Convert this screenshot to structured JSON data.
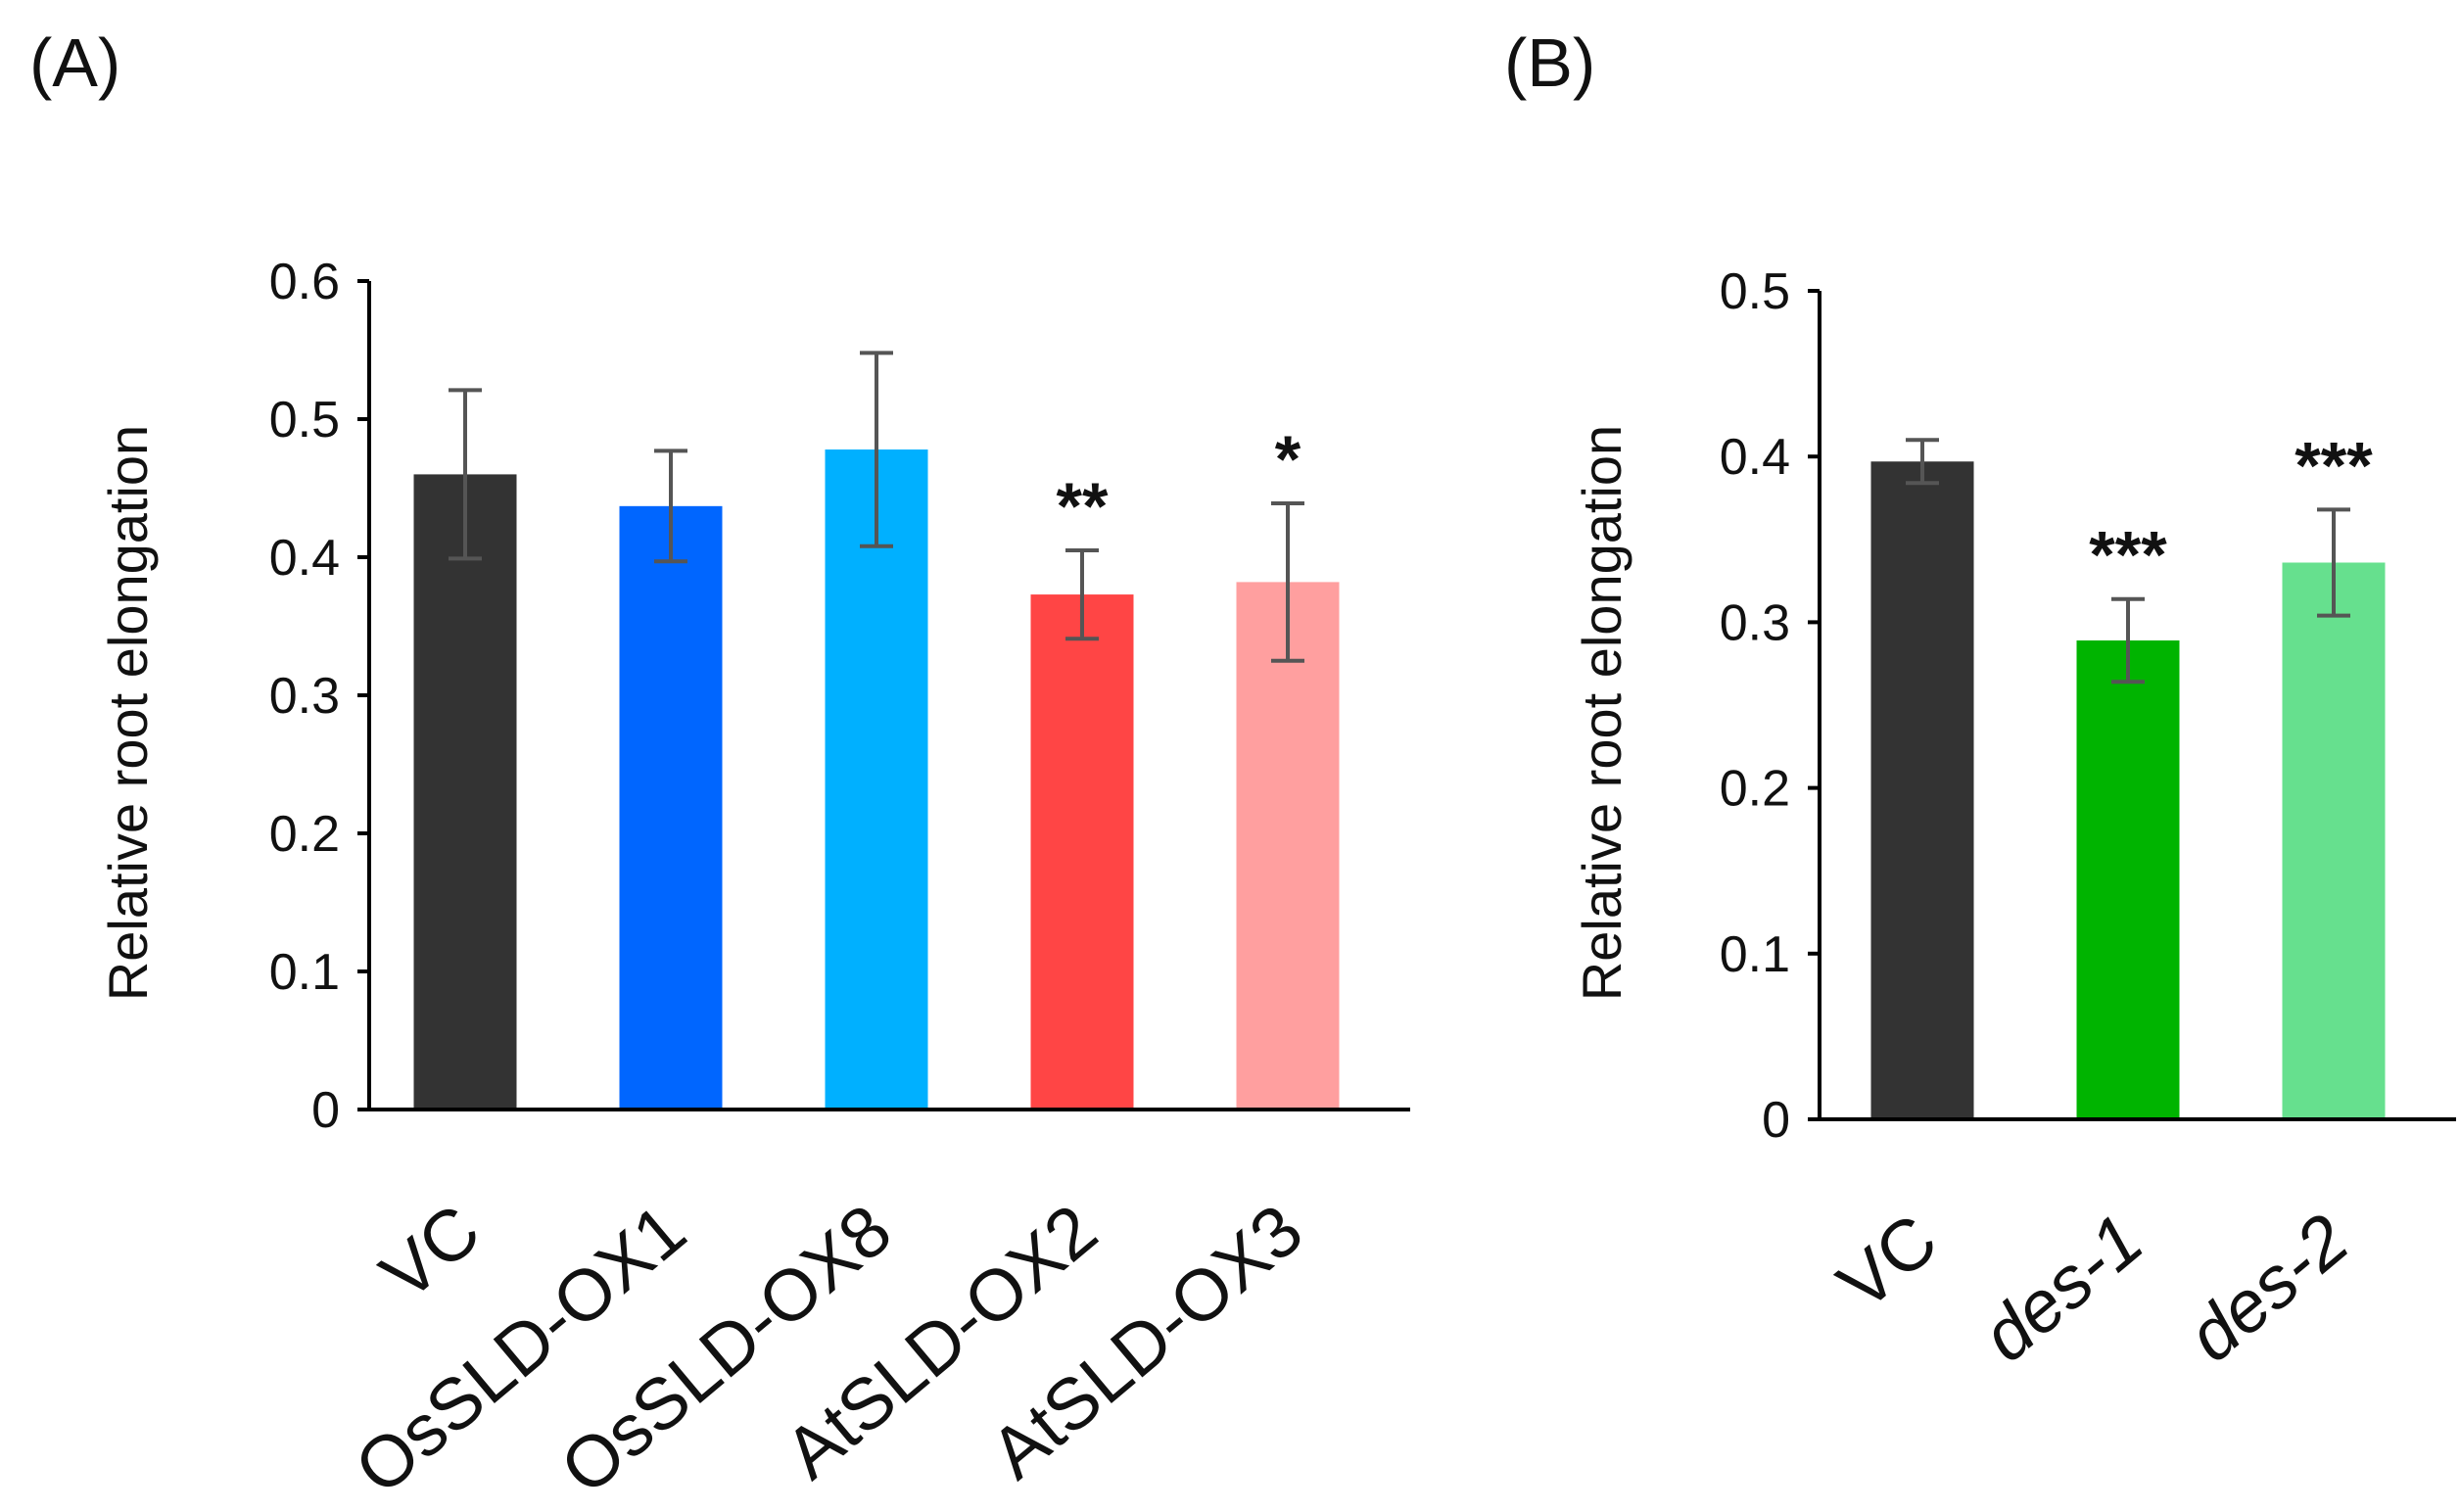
{
  "chart_data": [
    {
      "panel_label": "(A)",
      "type": "bar",
      "ylabel": "Relative root elongation",
      "ylim": [
        0,
        0.6
      ],
      "yticks": [
        "0",
        "0.1",
        "0.2",
        "0.3",
        "0.4",
        "0.5",
        "0.6"
      ],
      "categories": [
        "VC",
        "OsSLD-OX1",
        "OsSLD-OX8",
        "AtSLD-OX2",
        "AtSLD-OX3"
      ],
      "italic_categories": false,
      "values": [
        0.46,
        0.437,
        0.478,
        0.373,
        0.382
      ],
      "errors": [
        0.061,
        0.04,
        0.07,
        0.032,
        0.057
      ],
      "significance": [
        "",
        "",
        "",
        "**",
        "*"
      ],
      "colors": [
        "#333333",
        "#0066ff",
        "#00b0ff",
        "#ff4545",
        "#ff9f9f"
      ],
      "grid": false,
      "legend": "none"
    },
    {
      "panel_label": "(B)",
      "type": "bar",
      "ylabel": "Relative root elongation",
      "ylim": [
        0,
        0.5
      ],
      "yticks": [
        "0",
        "0.1",
        "0.2",
        "0.3",
        "0.4",
        "0.5"
      ],
      "categories": [
        "VC",
        "des-1",
        "des-2"
      ],
      "italic_categories": [
        false,
        true,
        true
      ],
      "values": [
        0.397,
        0.289,
        0.336
      ],
      "errors": [
        0.013,
        0.025,
        0.032
      ],
      "significance": [
        "",
        "***",
        "***"
      ],
      "colors": [
        "#333333",
        "#00b400",
        "#66e08e"
      ],
      "grid": false,
      "legend": "none"
    }
  ]
}
